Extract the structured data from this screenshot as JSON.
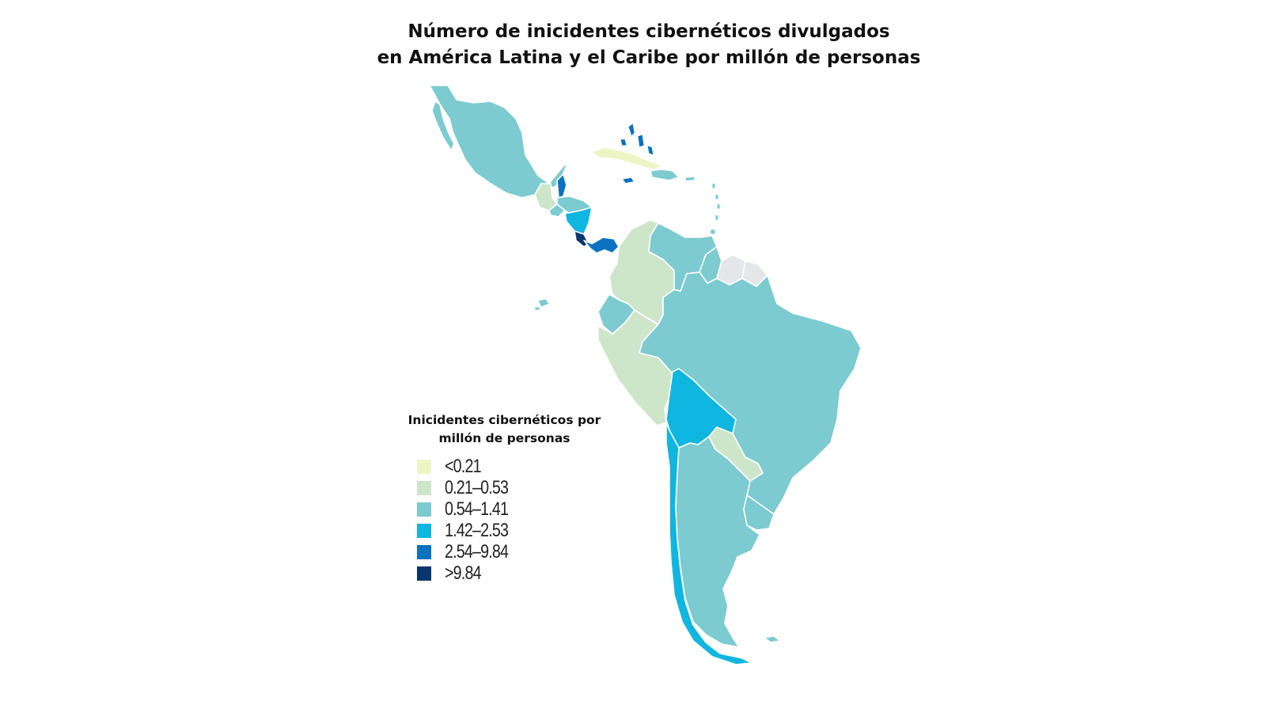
{
  "title": {
    "line1": "Número de inicidentes cibernéticos divulgados",
    "line2": "en América Latina y el Caribe por millón de personas"
  },
  "legend": {
    "title_line1": "Inicidentes cibernéticos por",
    "title_line2": "millón de personas",
    "items": [
      {
        "label": "<0.21",
        "color": "#edf5c4"
      },
      {
        "label": "0.21–0.53",
        "color": "#cde6c9"
      },
      {
        "label": "0.54–1.41",
        "color": "#7ccbd0"
      },
      {
        "label": "1.42–2.53",
        "color": "#0fb6e0"
      },
      {
        "label": "2.54–9.84",
        "color": "#0b72c0"
      },
      {
        "label": ">9.84",
        "color": "#08366e"
      }
    ]
  },
  "no_data_color": "#e4e6ea",
  "regions": [
    {
      "name": "México",
      "class": "0.54–1.41"
    },
    {
      "name": "Guatemala",
      "class": "0.21–0.53"
    },
    {
      "name": "Belice",
      "class": "2.54–9.84"
    },
    {
      "name": "Honduras",
      "class": "0.54–1.41"
    },
    {
      "name": "El Salvador",
      "class": "0.54–1.41"
    },
    {
      "name": "Nicaragua",
      "class": "1.42–2.53"
    },
    {
      "name": "Costa Rica",
      "class": ">9.84"
    },
    {
      "name": "Panamá",
      "class": "2.54–9.84"
    },
    {
      "name": "Cuba",
      "class": "<0.21"
    },
    {
      "name": "Bahamas",
      "class": "2.54–9.84"
    },
    {
      "name": "Jamaica",
      "class": "2.54–9.84"
    },
    {
      "name": "República Dominicana",
      "class": "0.54–1.41"
    },
    {
      "name": "Colombia",
      "class": "0.21–0.53"
    },
    {
      "name": "Venezuela",
      "class": "0.54–1.41"
    },
    {
      "name": "Guyana",
      "class": "0.54–1.41"
    },
    {
      "name": "Surinam",
      "class": "no data"
    },
    {
      "name": "Guayana Francesa",
      "class": "no data"
    },
    {
      "name": "Ecuador",
      "class": "0.54–1.41"
    },
    {
      "name": "Perú",
      "class": "0.21–0.53"
    },
    {
      "name": "Brasil",
      "class": "0.54–1.41"
    },
    {
      "name": "Bolivia",
      "class": "1.42–2.53"
    },
    {
      "name": "Paraguay",
      "class": "0.21–0.53"
    },
    {
      "name": "Chile",
      "class": "1.42–2.53"
    },
    {
      "name": "Argentina",
      "class": "0.54–1.41"
    },
    {
      "name": "Uruguay",
      "class": "0.54–1.41"
    }
  ]
}
